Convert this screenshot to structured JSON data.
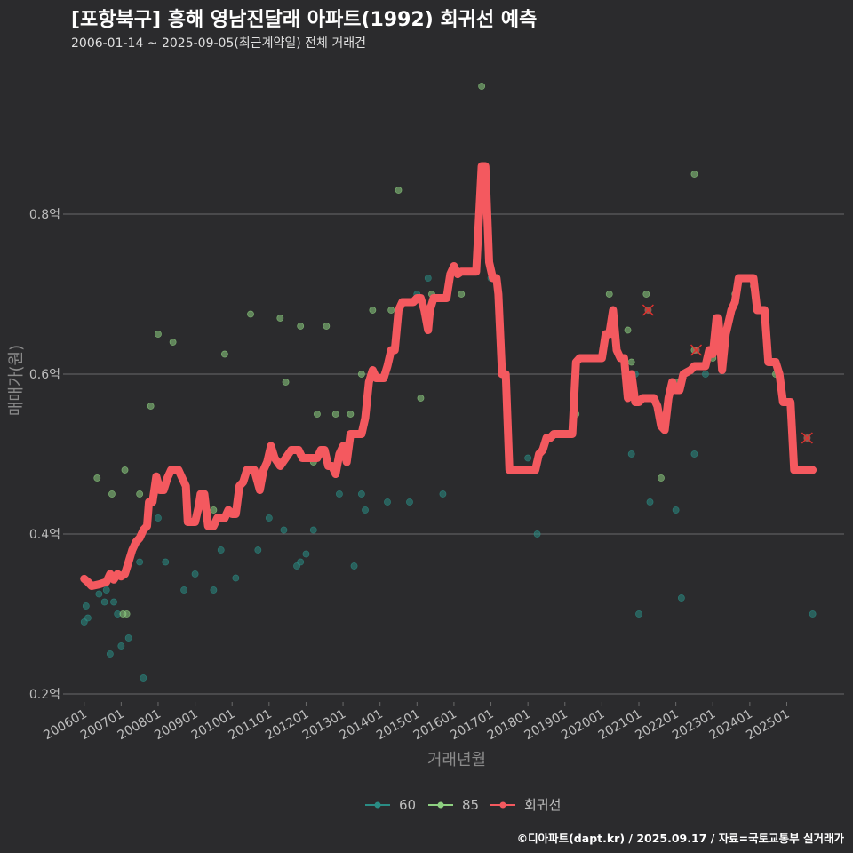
{
  "header": {
    "title": "[포항북구] 흥해 영남진달래 아파트(1992) 회귀선 예측",
    "subtitle": "2006-01-14 ~ 2025-09-05(최근계약일) 전체 거래건"
  },
  "caption": "©디아파트(dapt.kr) / 2025.09.17 / 자료=국토교통부 실거래가",
  "colors": {
    "background": "#2b2b2d",
    "grid": "#6a6a6a",
    "series_60": "#2a8c84",
    "series_85": "#8ed081",
    "regression": "#f4595f"
  },
  "chart_data": {
    "type": "scatter",
    "title": "[포항북구] 흥해 영남진달래 아파트(1992) 회귀선 예측",
    "xlabel": "거래년월",
    "ylabel": "매매가(원)",
    "xlim": [
      2005.55,
      2026.55
    ],
    "ylim": [
      0.19,
      0.99
    ],
    "y_ticks": [
      0.2,
      0.4,
      0.6,
      0.8
    ],
    "y_tick_labels": [
      "0.2억",
      "0.4억",
      "0.6억",
      "0.8억"
    ],
    "x_ticks": [
      2006.0,
      2007.0,
      2008.0,
      2009.0,
      2010.0,
      2011.0,
      2012.0,
      2013.0,
      2014.0,
      2015.0,
      2016.0,
      2017.0,
      2018.0,
      2019.0,
      2020.0,
      2021.0,
      2022.0,
      2023.0,
      2024.0,
      2025.0
    ],
    "x_tick_labels": [
      "200601",
      "200701",
      "200801",
      "200901",
      "201001",
      "201101",
      "201201",
      "201301",
      "201401",
      "201501",
      "201601",
      "201701",
      "201801",
      "201901",
      "202001",
      "202101",
      "202201",
      "202301",
      "202401",
      "202501"
    ],
    "legend_position": "bottom",
    "grid": "horizontal",
    "series": [
      {
        "name": "60",
        "points": [
          [
            2006.0,
            0.29
          ],
          [
            2006.05,
            0.31
          ],
          [
            2006.1,
            0.295
          ],
          [
            2006.4,
            0.325
          ],
          [
            2006.55,
            0.315
          ],
          [
            2006.6,
            0.33
          ],
          [
            2006.7,
            0.25
          ],
          [
            2006.8,
            0.315
          ],
          [
            2006.9,
            0.3
          ],
          [
            2007.0,
            0.26
          ],
          [
            2007.2,
            0.27
          ],
          [
            2007.5,
            0.365
          ],
          [
            2007.6,
            0.22
          ],
          [
            2007.9,
            0.45
          ],
          [
            2008.0,
            0.42
          ],
          [
            2008.2,
            0.365
          ],
          [
            2008.7,
            0.33
          ],
          [
            2009.0,
            0.35
          ],
          [
            2009.5,
            0.33
          ],
          [
            2009.7,
            0.38
          ],
          [
            2010.1,
            0.345
          ],
          [
            2010.7,
            0.38
          ],
          [
            2011.0,
            0.42
          ],
          [
            2011.4,
            0.405
          ],
          [
            2011.75,
            0.36
          ],
          [
            2011.85,
            0.365
          ],
          [
            2012.0,
            0.375
          ],
          [
            2012.2,
            0.405
          ],
          [
            2012.9,
            0.45
          ],
          [
            2013.3,
            0.36
          ],
          [
            2013.5,
            0.45
          ],
          [
            2013.6,
            0.43
          ],
          [
            2014.2,
            0.44
          ],
          [
            2014.8,
            0.44
          ],
          [
            2015.0,
            0.7
          ],
          [
            2015.3,
            0.72
          ],
          [
            2015.7,
            0.45
          ],
          [
            2017.0,
            0.72
          ],
          [
            2018.0,
            0.495
          ],
          [
            2018.25,
            0.4
          ],
          [
            2020.8,
            0.5
          ],
          [
            2020.9,
            0.6
          ],
          [
            2021.0,
            0.3
          ],
          [
            2021.3,
            0.44
          ],
          [
            2022.0,
            0.43
          ],
          [
            2022.15,
            0.32
          ],
          [
            2022.5,
            0.5
          ],
          [
            2022.8,
            0.6
          ],
          [
            2025.7,
            0.3
          ]
        ]
      },
      {
        "name": "85",
        "points": [
          [
            2006.35,
            0.47
          ],
          [
            2006.75,
            0.45
          ],
          [
            2007.05,
            0.3
          ],
          [
            2007.1,
            0.48
          ],
          [
            2007.15,
            0.3
          ],
          [
            2007.5,
            0.45
          ],
          [
            2007.8,
            0.56
          ],
          [
            2008.0,
            0.65
          ],
          [
            2008.4,
            0.64
          ],
          [
            2009.5,
            0.43
          ],
          [
            2009.8,
            0.625
          ],
          [
            2010.5,
            0.675
          ],
          [
            2011.3,
            0.67
          ],
          [
            2011.45,
            0.59
          ],
          [
            2011.85,
            0.66
          ],
          [
            2012.2,
            0.49
          ],
          [
            2012.3,
            0.55
          ],
          [
            2012.55,
            0.66
          ],
          [
            2012.8,
            0.55
          ],
          [
            2013.2,
            0.55
          ],
          [
            2013.5,
            0.6
          ],
          [
            2013.8,
            0.68
          ],
          [
            2014.3,
            0.68
          ],
          [
            2014.5,
            0.83
          ],
          [
            2014.8,
            0.69
          ],
          [
            2015.1,
            0.57
          ],
          [
            2015.4,
            0.7
          ],
          [
            2016.2,
            0.7
          ],
          [
            2016.75,
            0.96
          ],
          [
            2019.3,
            0.55
          ],
          [
            2020.2,
            0.7
          ],
          [
            2020.7,
            0.655
          ],
          [
            2020.8,
            0.615
          ],
          [
            2021.2,
            0.7
          ],
          [
            2021.6,
            0.47
          ],
          [
            2022.0,
            0.59
          ],
          [
            2022.5,
            0.85
          ],
          [
            2022.5,
            0.63
          ],
          [
            2023.0,
            0.62
          ],
          [
            2023.6,
            0.7
          ],
          [
            2024.1,
            0.71
          ],
          [
            2024.5,
            0.62
          ],
          [
            2024.7,
            0.6
          ]
        ]
      },
      {
        "name": "회귀선",
        "points": [
          [
            2006.0,
            0.344
          ],
          [
            2006.1,
            0.34
          ],
          [
            2006.2,
            0.335
          ],
          [
            2006.4,
            0.337
          ],
          [
            2006.6,
            0.34
          ],
          [
            2006.7,
            0.35
          ],
          [
            2006.8,
            0.343
          ],
          [
            2006.9,
            0.35
          ],
          [
            2007.0,
            0.347
          ],
          [
            2007.1,
            0.35
          ],
          [
            2007.2,
            0.365
          ],
          [
            2007.3,
            0.38
          ],
          [
            2007.4,
            0.39
          ],
          [
            2007.5,
            0.395
          ],
          [
            2007.6,
            0.405
          ],
          [
            2007.7,
            0.41
          ],
          [
            2007.75,
            0.44
          ],
          [
            2007.85,
            0.44
          ],
          [
            2007.95,
            0.472
          ],
          [
            2008.05,
            0.455
          ],
          [
            2008.15,
            0.455
          ],
          [
            2008.25,
            0.47
          ],
          [
            2008.35,
            0.48
          ],
          [
            2008.55,
            0.48
          ],
          [
            2008.65,
            0.47
          ],
          [
            2008.75,
            0.46
          ],
          [
            2008.8,
            0.415
          ],
          [
            2009.0,
            0.415
          ],
          [
            2009.1,
            0.435
          ],
          [
            2009.15,
            0.45
          ],
          [
            2009.25,
            0.45
          ],
          [
            2009.35,
            0.41
          ],
          [
            2009.5,
            0.41
          ],
          [
            2009.6,
            0.42
          ],
          [
            2009.8,
            0.42
          ],
          [
            2009.9,
            0.43
          ],
          [
            2010.0,
            0.425
          ],
          [
            2010.1,
            0.425
          ],
          [
            2010.2,
            0.46
          ],
          [
            2010.3,
            0.465
          ],
          [
            2010.4,
            0.48
          ],
          [
            2010.6,
            0.48
          ],
          [
            2010.75,
            0.455
          ],
          [
            2010.85,
            0.48
          ],
          [
            2010.95,
            0.49
          ],
          [
            2011.05,
            0.51
          ],
          [
            2011.15,
            0.495
          ],
          [
            2011.3,
            0.485
          ],
          [
            2011.45,
            0.495
          ],
          [
            2011.6,
            0.505
          ],
          [
            2011.8,
            0.505
          ],
          [
            2011.9,
            0.495
          ],
          [
            2012.3,
            0.495
          ],
          [
            2012.4,
            0.505
          ],
          [
            2012.5,
            0.505
          ],
          [
            2012.6,
            0.485
          ],
          [
            2012.7,
            0.485
          ],
          [
            2012.8,
            0.475
          ],
          [
            2012.9,
            0.5
          ],
          [
            2013.0,
            0.51
          ],
          [
            2013.1,
            0.49
          ],
          [
            2013.2,
            0.525
          ],
          [
            2013.5,
            0.525
          ],
          [
            2013.6,
            0.545
          ],
          [
            2013.7,
            0.59
          ],
          [
            2013.8,
            0.605
          ],
          [
            2013.9,
            0.595
          ],
          [
            2014.1,
            0.595
          ],
          [
            2014.2,
            0.61
          ],
          [
            2014.3,
            0.63
          ],
          [
            2014.4,
            0.63
          ],
          [
            2014.5,
            0.68
          ],
          [
            2014.6,
            0.69
          ],
          [
            2014.9,
            0.69
          ],
          [
            2015.0,
            0.695
          ],
          [
            2015.1,
            0.695
          ],
          [
            2015.2,
            0.68
          ],
          [
            2015.3,
            0.655
          ],
          [
            2015.35,
            0.68
          ],
          [
            2015.45,
            0.695
          ],
          [
            2015.8,
            0.695
          ],
          [
            2015.9,
            0.725
          ],
          [
            2016.0,
            0.735
          ],
          [
            2016.1,
            0.725
          ],
          [
            2016.2,
            0.728
          ],
          [
            2016.6,
            0.728
          ],
          [
            2016.75,
            0.86
          ],
          [
            2016.85,
            0.86
          ],
          [
            2016.95,
            0.74
          ],
          [
            2017.05,
            0.72
          ],
          [
            2017.15,
            0.72
          ],
          [
            2017.2,
            0.7
          ],
          [
            2017.3,
            0.6
          ],
          [
            2017.4,
            0.6
          ],
          [
            2017.5,
            0.48
          ],
          [
            2017.6,
            0.48
          ],
          [
            2018.2,
            0.48
          ],
          [
            2018.3,
            0.5
          ],
          [
            2018.4,
            0.505
          ],
          [
            2018.5,
            0.52
          ],
          [
            2018.6,
            0.52
          ],
          [
            2018.7,
            0.525
          ],
          [
            2019.2,
            0.525
          ],
          [
            2019.3,
            0.615
          ],
          [
            2019.4,
            0.62
          ],
          [
            2020.0,
            0.62
          ],
          [
            2020.1,
            0.65
          ],
          [
            2020.2,
            0.65
          ],
          [
            2020.3,
            0.68
          ],
          [
            2020.4,
            0.63
          ],
          [
            2020.5,
            0.62
          ],
          [
            2020.6,
            0.62
          ],
          [
            2020.7,
            0.57
          ],
          [
            2020.8,
            0.6
          ],
          [
            2020.9,
            0.565
          ],
          [
            2021.0,
            0.565
          ],
          [
            2021.1,
            0.57
          ],
          [
            2021.4,
            0.57
          ],
          [
            2021.5,
            0.56
          ],
          [
            2021.6,
            0.535
          ],
          [
            2021.7,
            0.53
          ],
          [
            2021.8,
            0.57
          ],
          [
            2021.9,
            0.59
          ],
          [
            2022.0,
            0.58
          ],
          [
            2022.1,
            0.58
          ],
          [
            2022.2,
            0.6
          ],
          [
            2022.4,
            0.605
          ],
          [
            2022.5,
            0.61
          ],
          [
            2022.8,
            0.61
          ],
          [
            2022.9,
            0.63
          ],
          [
            2023.0,
            0.625
          ],
          [
            2023.1,
            0.67
          ],
          [
            2023.15,
            0.67
          ],
          [
            2023.25,
            0.605
          ],
          [
            2023.35,
            0.65
          ],
          [
            2023.5,
            0.68
          ],
          [
            2023.6,
            0.69
          ],
          [
            2023.7,
            0.72
          ],
          [
            2024.1,
            0.72
          ],
          [
            2024.2,
            0.68
          ],
          [
            2024.4,
            0.68
          ],
          [
            2024.5,
            0.615
          ],
          [
            2024.7,
            0.615
          ],
          [
            2024.8,
            0.6
          ],
          [
            2024.9,
            0.565
          ],
          [
            2025.1,
            0.565
          ],
          [
            2025.2,
            0.48
          ],
          [
            2025.5,
            0.48
          ],
          [
            2025.7,
            0.48
          ]
        ]
      }
    ],
    "forecast_markers": [
      [
        2021.25,
        0.68
      ],
      [
        2022.55,
        0.63
      ],
      [
        2025.55,
        0.52
      ]
    ]
  }
}
